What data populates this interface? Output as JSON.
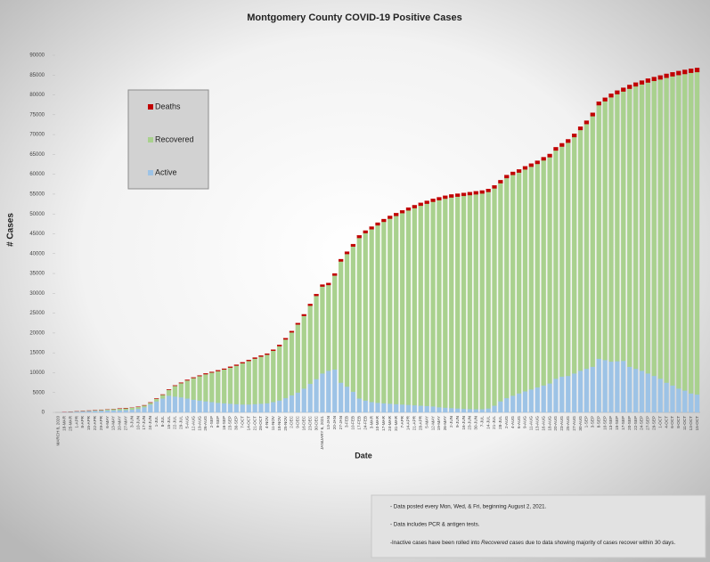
{
  "chart_data": {
    "type": "stacked-bar",
    "title": "Montgomery County COVID-19 Positive Cases",
    "x_label": "Date",
    "y_label": "# Cases",
    "categories": [
      "MARCH 8, 2020",
      "18-MAR",
      "25-MAR",
      "1-APR",
      "8-APR",
      "15-APR",
      "22-APR",
      "29-APR",
      "6-MAY",
      "13-MAY",
      "20-MAY",
      "27-MAY",
      "3-JUN",
      "10-JUN",
      "17-JUN",
      "24-JUN",
      "1-JUL",
      "8-JUL",
      "15-JUL",
      "22-JUL",
      "29-JUL",
      "5-AUG",
      "12-AUG",
      "19-AUG",
      "26-AUG",
      "2-SEP",
      "9-SEP",
      "16-SEP",
      "23-SEP",
      "30-SEP",
      "7-OCT",
      "14-OCT",
      "21-OCT",
      "28-OCT",
      "4-NOV",
      "11-NOV",
      "18-NOV",
      "25-NOV",
      "2-DEC",
      "9-DEC",
      "16-DEC",
      "23-DEC",
      "30-DEC",
      "JANUARY 6, 2021",
      "13-JAN",
      "20-JAN",
      "27-JAN",
      "3-FEB",
      "10-FEB",
      "17-FEB",
      "24-FEB",
      "3-MAR",
      "10-MAR",
      "17-MAR",
      "24-MAR",
      "31-MAR",
      "7-APR",
      "14-APR",
      "21-APR",
      "28-APR",
      "5-MAY",
      "12-MAY",
      "19-MAY",
      "26-MAY",
      "2-JUN",
      "9-JUN",
      "16-JUN",
      "23-JUN",
      "30-JUN",
      "7-JUL",
      "14-JUL",
      "21-JUL",
      "28-JUL",
      "2-AUG",
      "4-AUG",
      "6-AUG",
      "9-AUG",
      "11-AUG",
      "13-AUG",
      "16-AUG",
      "18-AUG",
      "20-AUG",
      "23-AUG",
      "25-AUG",
      "27-AUG",
      "30-AUG",
      "1-SEP",
      "3-SEP",
      "8-SEP",
      "10-SEP",
      "13-SEP",
      "15-SEP",
      "17-SEP",
      "20-SEP",
      "22-SEP",
      "24-SEP",
      "27-SEP",
      "29-SEP",
      "1-OCT",
      "4-OCT",
      "6-OCT",
      "8-OCT",
      "11-OCT",
      "13-OCT",
      "15-OCT"
    ],
    "series": [
      {
        "name": "Active",
        "color": "#9dc3e6",
        "values": [
          0,
          49,
          140,
          220,
          300,
          350,
          400,
          450,
          500,
          550,
          550,
          600,
          700,
          900,
          1300,
          2000,
          2800,
          3500,
          4200,
          4000,
          3800,
          3500,
          3200,
          3000,
          2800,
          2600,
          2400,
          2300,
          2200,
          2100,
          2000,
          2000,
          2100,
          2200,
          2300,
          2600,
          3000,
          3600,
          4300,
          5000,
          6000,
          7200,
          8400,
          9800,
          10500,
          10800,
          7500,
          6500,
          5200,
          3500,
          3000,
          2600,
          2400,
          2300,
          2200,
          2100,
          2000,
          1900,
          1800,
          1700,
          1600,
          1500,
          1300,
          1200,
          1100,
          1000,
          900,
          850,
          800,
          800,
          1000,
          1700,
          2800,
          3600,
          4200,
          4800,
          5300,
          5800,
          6300,
          6800,
          7300,
          8500,
          9000,
          9200,
          9800,
          10500,
          11000,
          11500,
          13500,
          13200,
          12800,
          12900,
          13000,
          11500,
          11000,
          10500,
          9800,
          9200,
          8500,
          7500,
          6800,
          6000,
          5500,
          4800,
          4500
        ]
      },
      {
        "name": "Recovered",
        "color": "#a9d18e",
        "values": [
          0,
          0,
          7,
          25,
          42,
          89,
          136,
          183,
          230,
          278,
          376,
          424,
          472,
          470,
          465,
          455,
          640,
          925,
          1505,
          2690,
          3575,
          4560,
          5450,
          6140,
          6830,
          7420,
          8010,
          8500,
          9090,
          9680,
          10370,
          10960,
          11450,
          11840,
          12230,
          12915,
          13700,
          14780,
          15855,
          17130,
          18300,
          19670,
          20940,
          21910,
          21590,
          23660,
          30530,
          33400,
          36580,
          40460,
          42150,
          43540,
          44730,
          45720,
          46610,
          47400,
          48195,
          48990,
          49685,
          50380,
          50975,
          51570,
          52165,
          52660,
          53058,
          53356,
          53654,
          53902,
          54150,
          54348,
          54546,
          54744,
          54940,
          55435,
          55630,
          55625,
          55920,
          56115,
          56310,
          56705,
          57000,
          57490,
          57980,
          58770,
          59560,
          60650,
          61640,
          63130,
          63910,
          65200,
          66590,
          67280,
          67870,
          70060,
          71150,
          72140,
          73330,
          74320,
          75410,
          76800,
          77890,
          78980,
          79770,
          80760,
          81250
        ]
      },
      {
        "name": "Deaths",
        "color": "#c00000",
        "values": [
          0,
          1,
          3,
          5,
          8,
          11,
          14,
          17,
          20,
          22,
          24,
          26,
          28,
          30,
          35,
          45,
          60,
          75,
          95,
          110,
          125,
          140,
          150,
          160,
          170,
          180,
          190,
          200,
          210,
          220,
          230,
          240,
          250,
          260,
          270,
          285,
          300,
          320,
          345,
          370,
          400,
          430,
          460,
          490,
          510,
          540,
          570,
          600,
          620,
          640,
          650,
          660,
          670,
          680,
          690,
          700,
          705,
          710,
          715,
          720,
          725,
          730,
          735,
          740,
          742,
          744,
          746,
          748,
          750,
          752,
          754,
          756,
          760,
          765,
          770,
          775,
          780,
          785,
          790,
          795,
          800,
          810,
          820,
          830,
          840,
          850,
          860,
          870,
          890,
          900,
          910,
          920,
          930,
          940,
          950,
          960,
          970,
          980,
          990,
          1000,
          1010,
          1020,
          1030,
          1040,
          1050
        ]
      }
    ],
    "ylim": [
      0,
      90000
    ],
    "yticks": [
      0,
      5000,
      10000,
      15000,
      20000,
      25000,
      30000,
      35000,
      40000,
      45000,
      50000,
      55000,
      60000,
      65000,
      70000,
      75000,
      80000,
      85000,
      90000
    ]
  },
  "notes": [
    "- Data posted every Mon, Wed, & Fri, beginning August 2, 2021.",
    "- Data includes PCR & antigen tests.",
    {
      "before": "-Inactive cases have been rolled into ",
      "emphasis": "Recovered cases",
      "after": "  due to data showing majority of cases recover within 30 days."
    }
  ]
}
